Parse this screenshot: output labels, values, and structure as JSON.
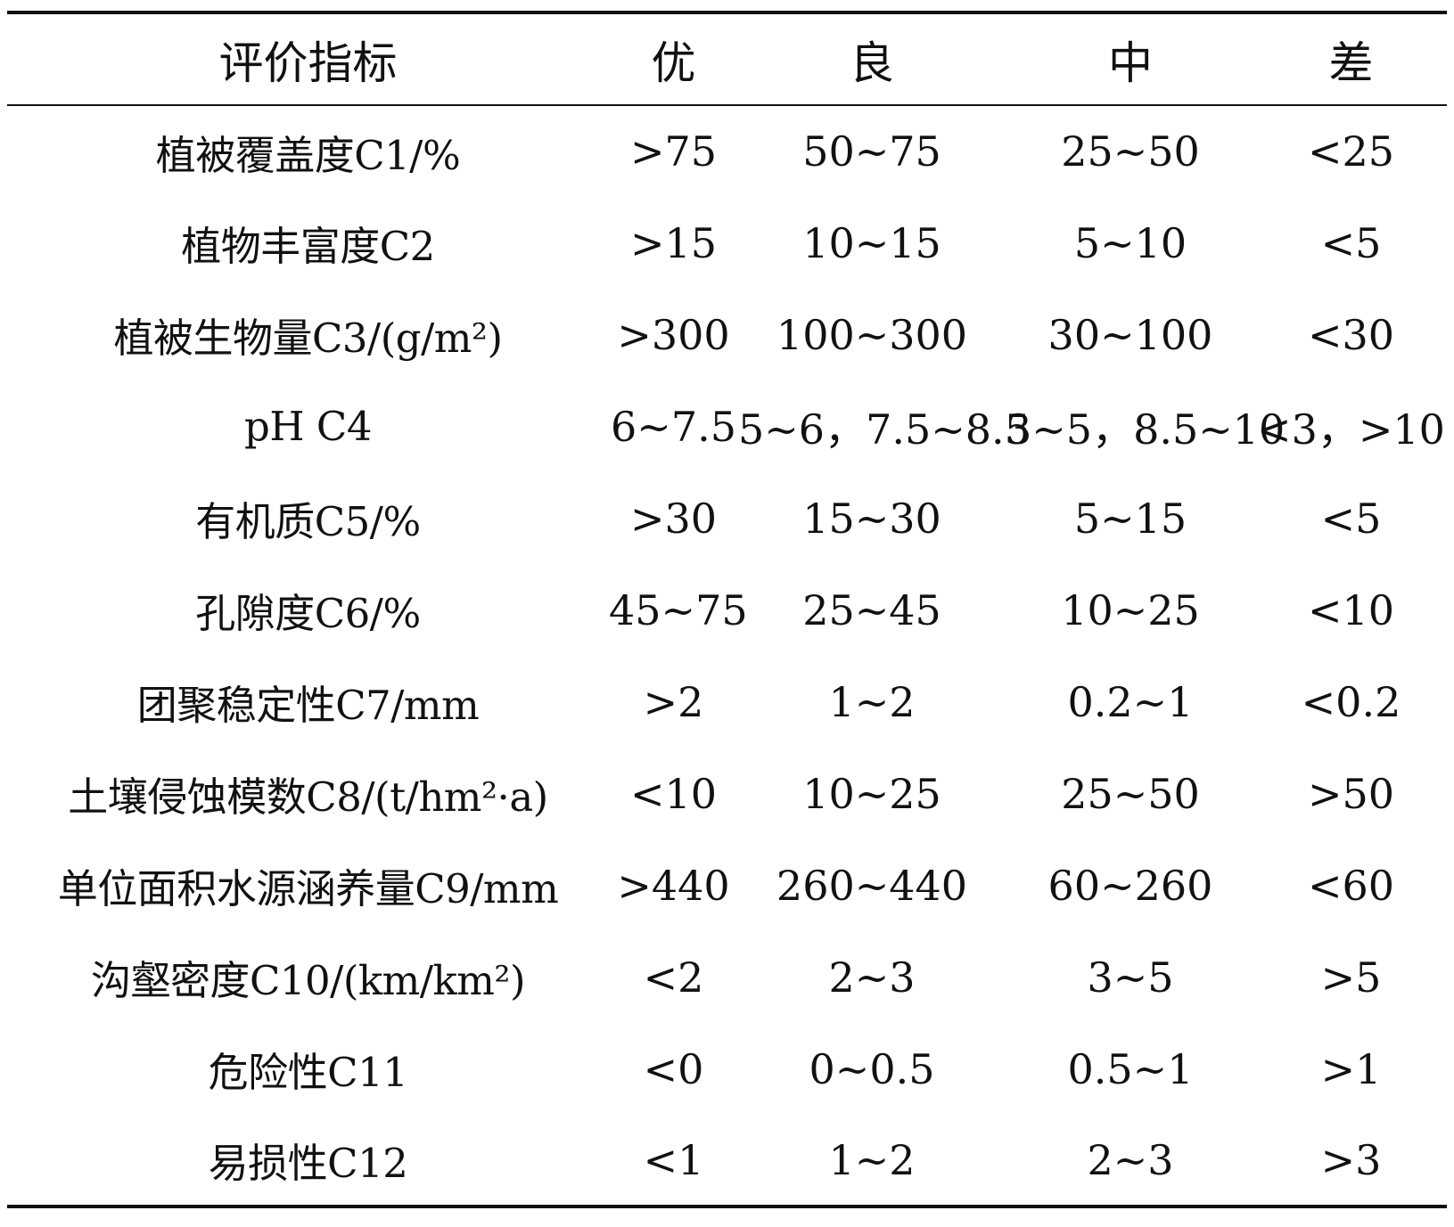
{
  "table": {
    "headers": [
      "评价指标",
      "优",
      "良",
      "中",
      "差"
    ],
    "rows": [
      {
        "indicator": "植被覆盖度C1/%",
        "excellent": ">75",
        "good": "50~75",
        "medium": "25~50",
        "poor": "<25"
      },
      {
        "indicator": "植物丰富度C2",
        "excellent": ">15",
        "good": "10~15",
        "medium": "5~10",
        "poor": "<5"
      },
      {
        "indicator": "植被生物量C3/(g/m²)",
        "excellent": ">300",
        "good": "100~300",
        "medium": "30~100",
        "poor": "<30"
      },
      {
        "indicator": "pH C4",
        "excellent": "6~7.5",
        "good": "5~6，7.5~8.5",
        "medium": "3~5，8.5~10",
        "poor": "<3，>10"
      },
      {
        "indicator": "有机质C5/%",
        "excellent": ">30",
        "good": "15~30",
        "medium": "5~15",
        "poor": "<5"
      },
      {
        "indicator": "孔隙度C6/%",
        "excellent": "45~75",
        "good": "25~45",
        "medium": "10~25",
        "poor": "<10"
      },
      {
        "indicator": "团聚稳定性C7/mm",
        "excellent": ">2",
        "good": "1~2",
        "medium": "0.2~1",
        "poor": "<0.2"
      },
      {
        "indicator": "土壤侵蚀模数C8/(t/hm²·a)",
        "excellent": "<10",
        "good": "10~25",
        "medium": "25~50",
        "poor": ">50"
      },
      {
        "indicator": "单位面积水源涵养量C9/mm",
        "excellent": ">440",
        "good": "260~440",
        "medium": "60~260",
        "poor": "<60"
      },
      {
        "indicator": "沟壑密度C10/(km/km²)",
        "excellent": "<2",
        "good": "2~3",
        "medium": "3~5",
        "poor": ">5"
      },
      {
        "indicator": "危险性C11",
        "excellent": "<0",
        "good": "0~0.5",
        "medium": "0.5~1",
        "poor": ">1"
      },
      {
        "indicator": "易损性C12",
        "excellent": "<1",
        "good": "1~2",
        "medium": "2~3",
        "poor": ">3"
      }
    ]
  }
}
